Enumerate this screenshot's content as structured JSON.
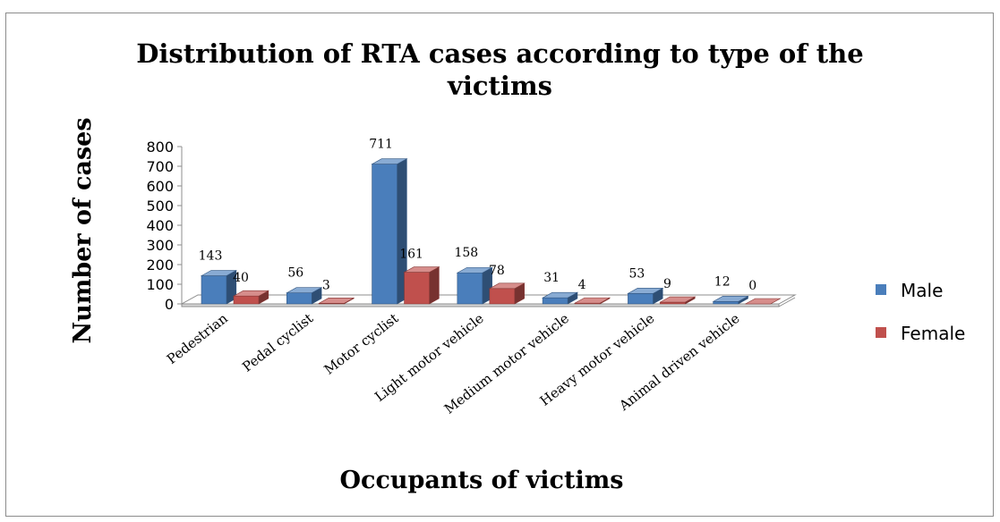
{
  "chart_data": {
    "type": "bar",
    "title": "Distribution of RTA cases according to type of the victims",
    "title_lines": [
      "Distribution of RTA cases according to type of the",
      "victims"
    ],
    "xlabel": "Occupants of victims",
    "ylabel": "Number of cases",
    "ylim": [
      0,
      800
    ],
    "yticks": [
      0,
      100,
      200,
      300,
      400,
      500,
      600,
      700,
      800
    ],
    "categories": [
      "Pedestrian",
      "Pedal cyclist",
      "Motor cyclist",
      "Light motor vehicle",
      "Medium motor vehicle",
      "Heavy motor vehicle",
      "Animal driven vehicle"
    ],
    "series": [
      {
        "name": "Male",
        "values": [
          143,
          56,
          711,
          158,
          31,
          53,
          12
        ],
        "color": "#4a7ebb"
      },
      {
        "name": "Female",
        "values": [
          40,
          3,
          161,
          78,
          4,
          9,
          0
        ],
        "color": "#c0504d"
      }
    ],
    "legend_position": "right",
    "grid": false,
    "style": "3d-clustered-column"
  }
}
